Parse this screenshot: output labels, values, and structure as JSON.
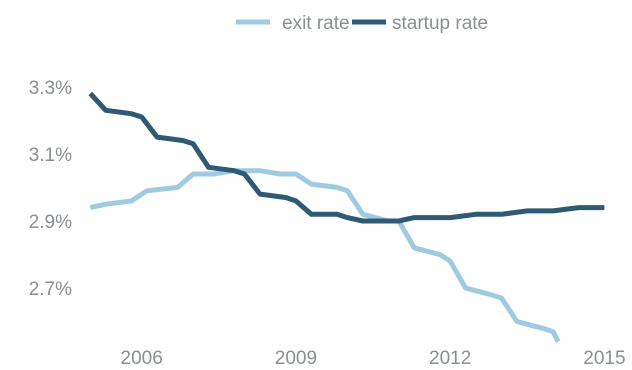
{
  "chart_data": {
    "type": "line",
    "title": "",
    "xlabel": "",
    "ylabel": "",
    "x_ticks": [
      "2006",
      "2009",
      "2012",
      "2015"
    ],
    "y_ticks": [
      "3.3%",
      "3.1%",
      "2.9%",
      "2.7%"
    ],
    "xlim": [
      2004.8,
      2015.4
    ],
    "ylim": [
      2.56,
      3.38
    ],
    "grid": false,
    "legend_position": "top-center",
    "series": [
      {
        "name": "exit rate",
        "color": "#9ecbe0",
        "points": [
          [
            2005.0,
            2.94
          ],
          [
            2005.3,
            2.95
          ],
          [
            2005.8,
            2.96
          ],
          [
            2006.1,
            2.99
          ],
          [
            2006.7,
            3.0
          ],
          [
            2007.0,
            3.04
          ],
          [
            2007.4,
            3.04
          ],
          [
            2007.8,
            3.05
          ],
          [
            2008.3,
            3.05
          ],
          [
            2008.7,
            3.04
          ],
          [
            2009.0,
            3.04
          ],
          [
            2009.3,
            3.01
          ],
          [
            2009.8,
            3.0
          ],
          [
            2010.0,
            2.99
          ],
          [
            2010.3,
            2.92
          ],
          [
            2010.8,
            2.9
          ],
          [
            2011.0,
            2.9
          ],
          [
            2011.3,
            2.82
          ],
          [
            2011.8,
            2.8
          ],
          [
            2012.0,
            2.78
          ],
          [
            2012.3,
            2.7
          ],
          [
            2012.8,
            2.68
          ],
          [
            2013.0,
            2.67
          ],
          [
            2013.3,
            2.6
          ],
          [
            2013.8,
            2.58
          ],
          [
            2014.0,
            2.57
          ],
          [
            2014.1,
            2.54
          ]
        ]
      },
      {
        "name": "startup rate",
        "color": "#2e5a73",
        "points": [
          [
            2005.0,
            3.28
          ],
          [
            2005.3,
            3.23
          ],
          [
            2005.8,
            3.22
          ],
          [
            2006.0,
            3.21
          ],
          [
            2006.3,
            3.15
          ],
          [
            2006.8,
            3.14
          ],
          [
            2007.0,
            3.13
          ],
          [
            2007.3,
            3.06
          ],
          [
            2007.8,
            3.05
          ],
          [
            2008.0,
            3.04
          ],
          [
            2008.3,
            2.98
          ],
          [
            2008.8,
            2.97
          ],
          [
            2009.0,
            2.96
          ],
          [
            2009.3,
            2.92
          ],
          [
            2009.8,
            2.92
          ],
          [
            2010.0,
            2.91
          ],
          [
            2010.3,
            2.9
          ],
          [
            2011.0,
            2.9
          ],
          [
            2011.3,
            2.91
          ],
          [
            2012.0,
            2.91
          ],
          [
            2012.5,
            2.92
          ],
          [
            2013.0,
            2.92
          ],
          [
            2013.5,
            2.93
          ],
          [
            2014.0,
            2.93
          ],
          [
            2014.5,
            2.94
          ],
          [
            2015.0,
            2.94
          ]
        ]
      }
    ]
  }
}
